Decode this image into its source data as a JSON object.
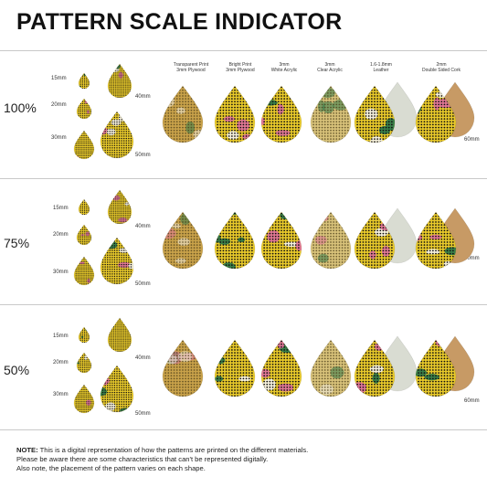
{
  "title": "PATTERN SCALE INDICATOR",
  "materials": [
    {
      "line1": "Transparent Print",
      "line2": "3mm Plywood"
    },
    {
      "line1": "Bright Print",
      "line2": "3mm Plywood"
    },
    {
      "line1": "3mm",
      "line2": "White Acrylic"
    },
    {
      "line1": "3mm",
      "line2": "Clear Acrylic"
    },
    {
      "line1": "1.6-1.8mm",
      "line2": "Leather"
    },
    {
      "line1": "2mm",
      "line2": "Double Sided Cork"
    }
  ],
  "rows": [
    {
      "scale": "100%",
      "sizes": [
        "15mm",
        "20mm",
        "30mm",
        "40mm",
        "50mm"
      ],
      "shape_size": "60mm"
    },
    {
      "scale": "75%",
      "sizes": [
        "15mm",
        "20mm",
        "30mm",
        "40mm",
        "50mm"
      ],
      "shape_size": "60mm"
    },
    {
      "scale": "50%",
      "sizes": [
        "15mm",
        "20mm",
        "30mm",
        "40mm",
        "50mm"
      ],
      "shape_size": "60mm"
    }
  ],
  "note": {
    "label": "NOTE:",
    "line1": "This is a digital representation of how the patterns are printed on the different materials.",
    "line2": "Please be aware there are some characteristics that can't be represented digitally.",
    "line3": "Also note, the placement of the pattern varies on each shape."
  },
  "colors": {
    "mustard": "#d9b32c",
    "yellow": "#e8c92a",
    "pink": "#e0739a",
    "green": "#2f7a4a",
    "white": "#f4f1e6",
    "leather": "#d9dcd2",
    "cork": "#c79a65",
    "plywood": "#c9a24a"
  }
}
